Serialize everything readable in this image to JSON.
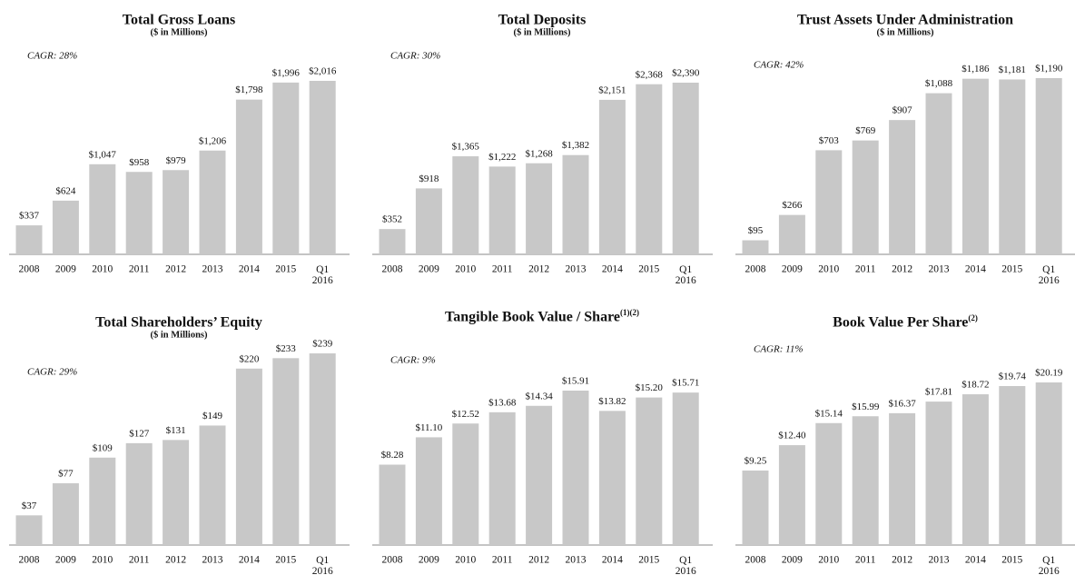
{
  "chart_data": [
    {
      "type": "bar",
      "title": "Total Gross Loans",
      "subtitle": "($ in Millions)",
      "annotation": "CAGR: 28%",
      "categories": [
        "2008",
        "2009",
        "2010",
        "2011",
        "2012",
        "2013",
        "2014",
        "2015",
        "Q1 2016"
      ],
      "values": [
        337,
        624,
        1047,
        958,
        979,
        1206,
        1798,
        1996,
        2016
      ],
      "value_labels": [
        "$337",
        "$624",
        "$1,047",
        "$958",
        "$979",
        "$1,206",
        "$1,798",
        "$1,996",
        "$2,016"
      ],
      "color": "#c8c8c8"
    },
    {
      "type": "bar",
      "title": "Total Deposits",
      "subtitle": "($ in Millions)",
      "annotation": "CAGR: 30%",
      "categories": [
        "2008",
        "2009",
        "2010",
        "2011",
        "2012",
        "2013",
        "2014",
        "2015",
        "Q1 2016"
      ],
      "values": [
        352,
        918,
        1365,
        1222,
        1268,
        1382,
        2151,
        2368,
        2390
      ],
      "value_labels": [
        "$352",
        "$918",
        "$1,365",
        "$1,222",
        "$1,268",
        "$1,382",
        "$2,151",
        "$2,368",
        "$2,390"
      ],
      "color": "#c8c8c8"
    },
    {
      "type": "bar",
      "title": "Trust Assets Under Administration",
      "subtitle": "($ in Millions)",
      "annotation": "CAGR: 42%",
      "categories": [
        "2008",
        "2009",
        "2010",
        "2011",
        "2012",
        "2013",
        "2014",
        "2015",
        "Q1 2016"
      ],
      "values": [
        95,
        266,
        703,
        769,
        907,
        1088,
        1186,
        1181,
        1190
      ],
      "value_labels": [
        "$95",
        "$266",
        "$703",
        "$769",
        "$907",
        "$1,088",
        "$1,186",
        "$1,181",
        "$1,190"
      ],
      "color": "#c8c8c8"
    },
    {
      "type": "bar",
      "title": "Total Shareholders’ Equity",
      "subtitle": "($ in Millions)",
      "annotation": "CAGR: 29%",
      "categories": [
        "2008",
        "2009",
        "2010",
        "2011",
        "2012",
        "2013",
        "2014",
        "2015",
        "Q1 2016"
      ],
      "values": [
        37,
        77,
        109,
        127,
        131,
        149,
        220,
        233,
        239
      ],
      "value_labels": [
        "$37",
        "$77",
        "$109",
        "$127",
        "$131",
        "$149",
        "$220",
        "$233",
        "$239"
      ],
      "color": "#c8c8c8"
    },
    {
      "type": "bar",
      "title": "Tangible Book Value / Share",
      "title_superscript": "(1)(2)",
      "annotation": "CAGR: 9%",
      "categories": [
        "2008",
        "2009",
        "2010",
        "2011",
        "2012",
        "2013",
        "2014",
        "2015",
        "Q1 2016"
      ],
      "values": [
        8.28,
        11.1,
        12.52,
        13.68,
        14.34,
        15.91,
        13.82,
        15.2,
        15.71
      ],
      "value_labels": [
        "$8.28",
        "$11.10",
        "$12.52",
        "$13.68",
        "$14.34",
        "$15.91",
        "$13.82",
        "$15.20",
        "$15.71"
      ],
      "color": "#c8c8c8"
    },
    {
      "type": "bar",
      "title": "Book Value Per Share",
      "title_superscript": "(2)",
      "annotation": "CAGR: 11%",
      "categories": [
        "2008",
        "2009",
        "2010",
        "2011",
        "2012",
        "2013",
        "2014",
        "2015",
        "Q1 2016"
      ],
      "values": [
        9.25,
        12.4,
        15.14,
        15.99,
        16.37,
        17.81,
        18.72,
        19.74,
        20.19
      ],
      "value_labels": [
        "$9.25",
        "$12.40",
        "$15.14",
        "$15.99",
        "$16.37",
        "$17.81",
        "$18.72",
        "$19.74",
        "$20.19"
      ],
      "color": "#c8c8c8"
    }
  ]
}
